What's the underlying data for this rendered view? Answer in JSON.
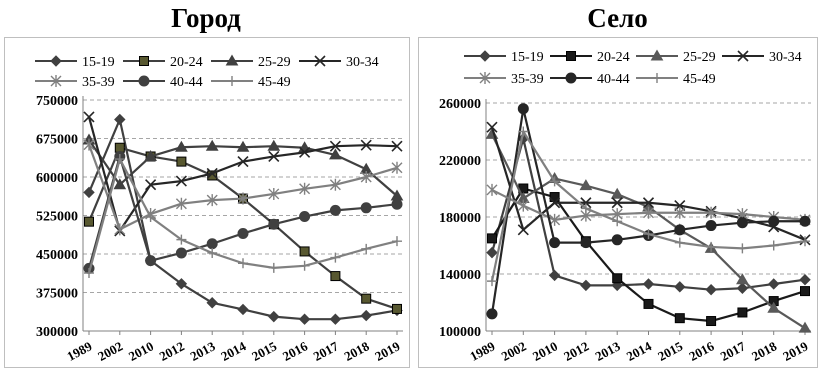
{
  "chart_data": [
    {
      "type": "line",
      "title": "Город",
      "categories": [
        "1989",
        "2002",
        "2010",
        "2012",
        "2013",
        "2014",
        "2015",
        "2016",
        "2017",
        "2018",
        "2019"
      ],
      "ylim": [
        300000,
        750000
      ],
      "yticks": [
        "300000",
        "375000",
        "450000",
        "525000",
        "600000",
        "675000",
        "750000"
      ],
      "grid": "horizontal dashed",
      "legend_placement": "top",
      "series": [
        {
          "name": "15-19",
          "marker": "diamond",
          "color": "#404040",
          "values": [
            570000,
            712000,
            437000,
            392000,
            355000,
            342000,
            328000,
            323000,
            323000,
            330000,
            340000
          ]
        },
        {
          "name": "20-24",
          "marker": "square",
          "color": "#404040",
          "values": [
            513000,
            657000,
            640000,
            630000,
            603000,
            558000,
            508000,
            455000,
            407000,
            363000,
            343000
          ]
        },
        {
          "name": "25-29",
          "marker": "triangle",
          "color": "#404040",
          "values": [
            672000,
            585000,
            640000,
            658000,
            660000,
            658000,
            660000,
            657000,
            643000,
            615000,
            563000
          ]
        },
        {
          "name": "30-34",
          "marker": "x",
          "color": "#262626",
          "values": [
            717000,
            495000,
            585000,
            592000,
            607000,
            630000,
            640000,
            648000,
            660000,
            662000,
            660000
          ]
        },
        {
          "name": "35-39",
          "marker": "star",
          "color": "#808080",
          "values": [
            663000,
            498000,
            528000,
            548000,
            555000,
            558000,
            567000,
            577000,
            585000,
            600000,
            618000
          ]
        },
        {
          "name": "40-44",
          "marker": "circle",
          "color": "#404040",
          "values": [
            422000,
            640000,
            437000,
            452000,
            470000,
            490000,
            508000,
            523000,
            535000,
            540000,
            547000
          ]
        },
        {
          "name": "45-49",
          "marker": "plus",
          "color": "#808080",
          "values": [
            413000,
            635000,
            522000,
            478000,
            452000,
            432000,
            423000,
            427000,
            443000,
            460000,
            475000
          ]
        }
      ]
    },
    {
      "type": "line",
      "title": "Село",
      "categories": [
        "1989",
        "2002",
        "2010",
        "2012",
        "2013",
        "2014",
        "2015",
        "2016",
        "2017",
        "2018",
        "2019"
      ],
      "ylim": [
        100000,
        260000
      ],
      "yticks": [
        "100000",
        "140000",
        "180000",
        "220000",
        "260000"
      ],
      "grid": "horizontal dashed",
      "legend_placement": "top",
      "series": [
        {
          "name": "15-19",
          "marker": "diamond",
          "color": "#404040",
          "values": [
            155000,
            235000,
            139000,
            132000,
            132000,
            133000,
            131000,
            129000,
            130000,
            133000,
            136000
          ]
        },
        {
          "name": "20-24",
          "marker": "square",
          "color": "#1a1a1a",
          "values": [
            165000,
            200000,
            194000,
            163000,
            137000,
            119000,
            109000,
            107000,
            113000,
            121000,
            128000
          ]
        },
        {
          "name": "25-29",
          "marker": "triangle",
          "color": "#595959",
          "values": [
            238000,
            193000,
            207000,
            202000,
            196000,
            187000,
            171000,
            158000,
            136000,
            116000,
            102000
          ]
        },
        {
          "name": "30-34",
          "marker": "x",
          "color": "#262626",
          "values": [
            243000,
            171000,
            190000,
            190000,
            190000,
            190000,
            188000,
            184000,
            179000,
            173000,
            164000
          ]
        },
        {
          "name": "35-39",
          "marker": "star",
          "color": "#808080",
          "values": [
            199000,
            188000,
            178000,
            181000,
            182000,
            183000,
            183000,
            183000,
            182000,
            180000,
            178000
          ]
        },
        {
          "name": "40-44",
          "marker": "circle",
          "color": "#262626",
          "values": [
            112000,
            256000,
            162000,
            162000,
            164000,
            167000,
            171000,
            174000,
            176000,
            177000,
            177000
          ]
        },
        {
          "name": "45-49",
          "marker": "plus",
          "color": "#808080",
          "values": [
            135000,
            240000,
            205000,
            186000,
            177000,
            168000,
            162000,
            159000,
            158000,
            160000,
            163000
          ]
        }
      ]
    }
  ]
}
